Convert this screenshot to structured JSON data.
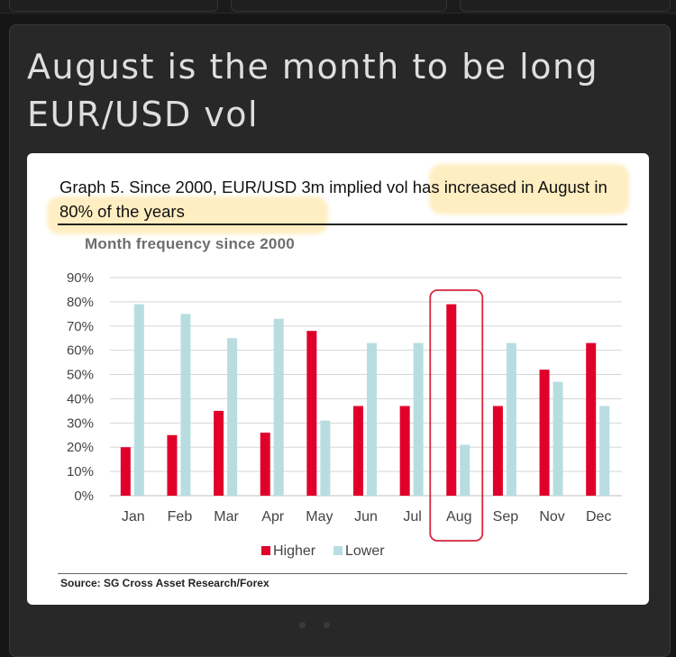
{
  "page": {
    "headline": "August is the month to be long EUR/USD vol"
  },
  "figure": {
    "title": "Graph 5. Since 2000, EUR/USD 3m implied vol has increased in August in 80% of the years",
    "subtitle": "Month frequency since 2000",
    "source": "Source: SG Cross Asset Research/Forex",
    "highlight_color": "#ffd66e"
  },
  "chart_data": {
    "type": "bar",
    "categories": [
      "Jan",
      "Feb",
      "Mar",
      "Apr",
      "May",
      "Jun",
      "Jul",
      "Aug",
      "Sep",
      "Nov",
      "Dec"
    ],
    "series": [
      {
        "name": "Higher",
        "color": "#e0002a",
        "values": [
          20,
          25,
          35,
          26,
          68,
          37,
          37,
          79,
          37,
          52,
          63
        ]
      },
      {
        "name": "Lower",
        "color": "#b8dde1",
        "values": [
          79,
          75,
          65,
          73,
          31,
          63,
          63,
          21,
          63,
          47,
          37
        ]
      }
    ],
    "ylim": [
      0,
      90
    ],
    "yticks": [
      "0%",
      "10%",
      "20%",
      "30%",
      "40%",
      "50%",
      "60%",
      "70%",
      "80%",
      "90%"
    ],
    "grid": true,
    "legend_position": "bottom",
    "highlight_category": "Aug",
    "highlight_color": "#d7263d"
  }
}
